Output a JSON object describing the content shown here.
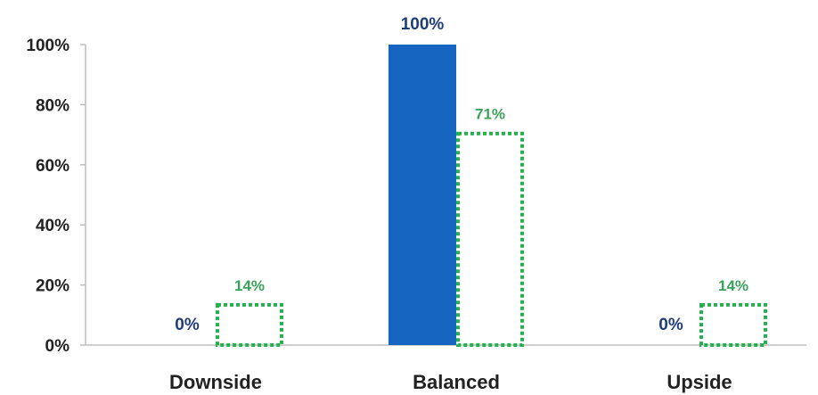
{
  "chart_data": {
    "type": "bar",
    "categories": [
      "Downside",
      "Balanced",
      "Upside"
    ],
    "series": [
      {
        "values": [
          0,
          100,
          0
        ],
        "labels": [
          "0%",
          "100%",
          "0%"
        ],
        "color": "#1565c0",
        "style": "solid"
      },
      {
        "values": [
          14,
          71,
          14
        ],
        "labels": [
          "14%",
          "71%",
          "14%"
        ],
        "color": "#22b14c",
        "style": "dotted-outline"
      }
    ],
    "y_ticks": [
      "0%",
      "20%",
      "40%",
      "60%",
      "80%",
      "100%"
    ],
    "ylim": [
      0,
      100
    ],
    "grid": false,
    "title": "",
    "xlabel": "",
    "ylabel": ""
  }
}
